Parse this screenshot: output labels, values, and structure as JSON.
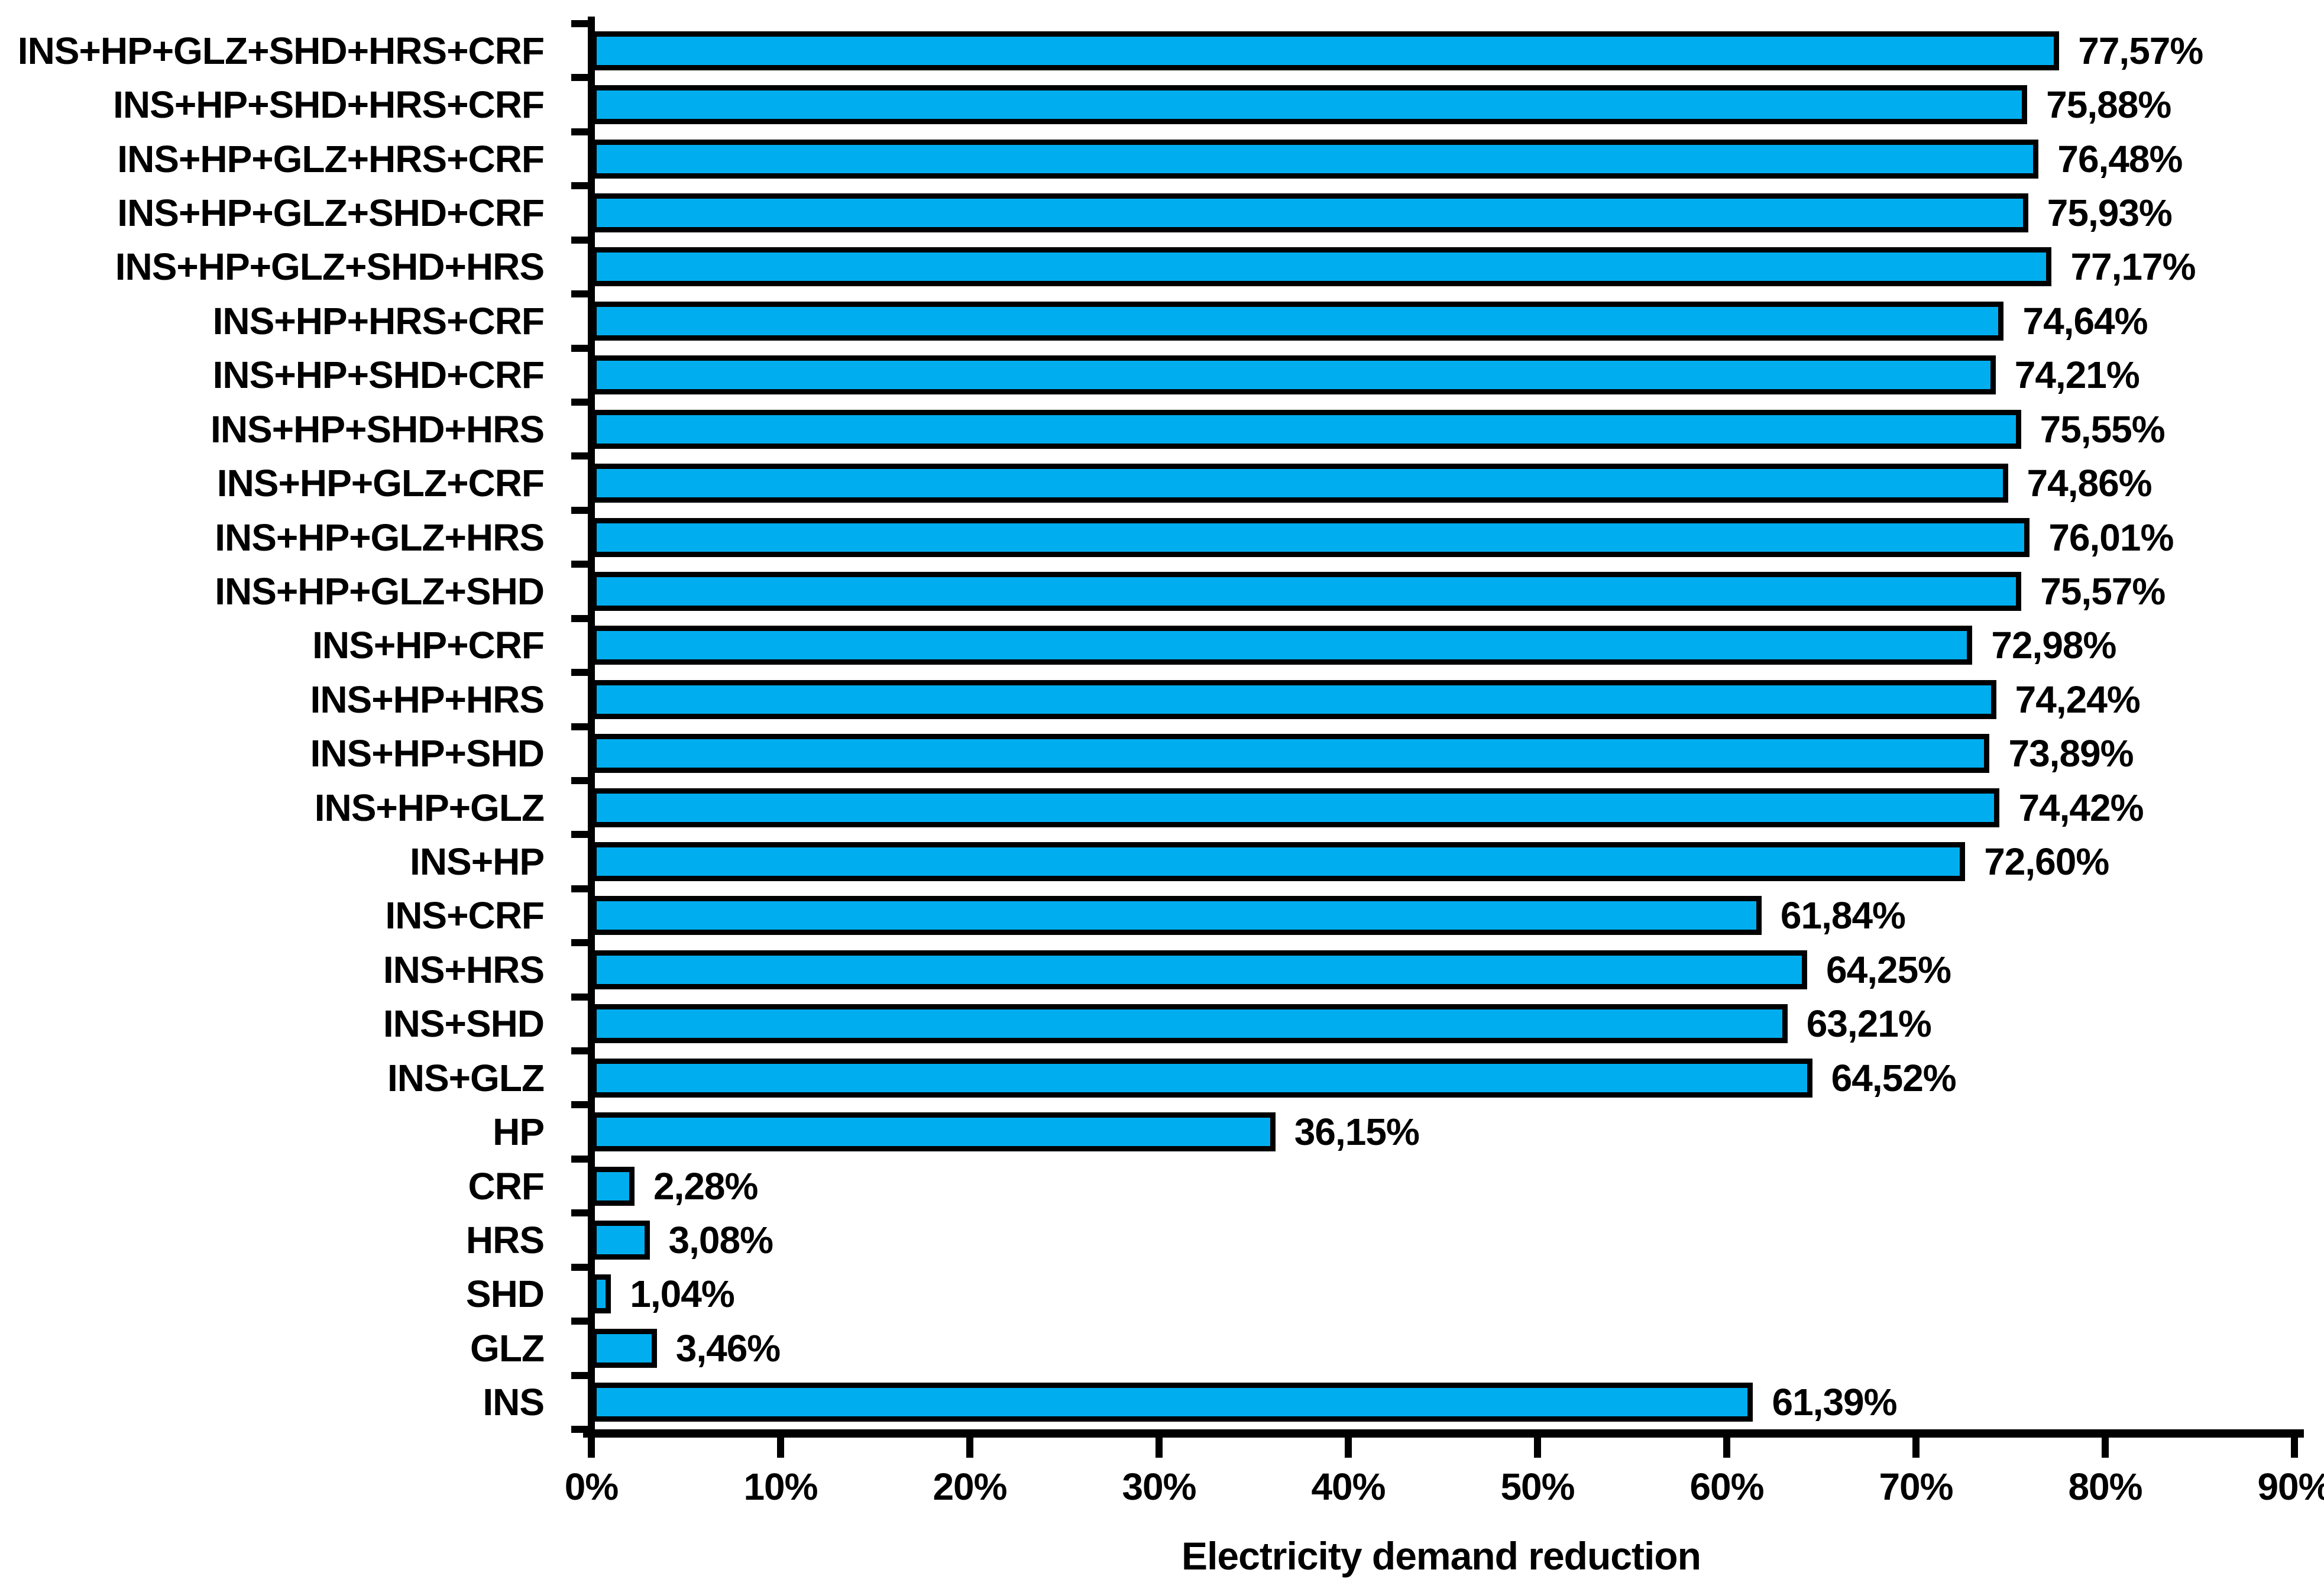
{
  "chart_data": {
    "type": "bar",
    "orientation": "horizontal",
    "title": "",
    "xlabel": "Electricity demand reduction",
    "ylabel": "",
    "xlim": [
      0,
      90
    ],
    "x_tick_step": 10,
    "x_tick_labels": [
      "0%",
      "10%",
      "20%",
      "30%",
      "40%",
      "50%",
      "60%",
      "70%",
      "80%",
      "90%"
    ],
    "grid": false,
    "legend": false,
    "bar_color": "#00aeef",
    "bar_border_color": "#000000",
    "text_color": "#000000",
    "categories": [
      "INS+HP+GLZ+SHD+HRS+CRF",
      "INS+HP+SHD+HRS+CRF",
      "INS+HP+GLZ+HRS+CRF",
      "INS+HP+GLZ+SHD+CRF",
      "INS+HP+GLZ+SHD+HRS",
      "INS+HP+HRS+CRF",
      "INS+HP+SHD+CRF",
      "INS+HP+SHD+HRS",
      "INS+HP+GLZ+CRF",
      "INS+HP+GLZ+HRS",
      "INS+HP+GLZ+SHD",
      "INS+HP+CRF",
      "INS+HP+HRS",
      "INS+HP+SHD",
      "INS+HP+GLZ",
      "INS+HP",
      "INS+CRF",
      "INS+HRS",
      "INS+SHD",
      "INS+GLZ",
      "HP",
      "CRF",
      "HRS",
      "SHD",
      "GLZ",
      "INS"
    ],
    "values": [
      77.57,
      75.88,
      76.48,
      75.93,
      77.17,
      74.64,
      74.21,
      75.55,
      74.86,
      76.01,
      75.57,
      72.98,
      74.24,
      73.89,
      74.42,
      72.6,
      61.84,
      64.25,
      63.21,
      64.52,
      36.15,
      2.28,
      3.08,
      1.04,
      3.46,
      61.39
    ],
    "value_labels": [
      "77,57%",
      "75,88%",
      "76,48%",
      "75,93%",
      "77,17%",
      "74,64%",
      "74,21%",
      "75,55%",
      "74,86%",
      "76,01%",
      "75,57%",
      "72,98%",
      "74,24%",
      "73,89%",
      "74,42%",
      "72,60%",
      "61,84%",
      "64,25%",
      "63,21%",
      "64,52%",
      "36,15%",
      "2,28%",
      "3,08%",
      "1,04%",
      "3,46%",
      "61,39%"
    ]
  }
}
